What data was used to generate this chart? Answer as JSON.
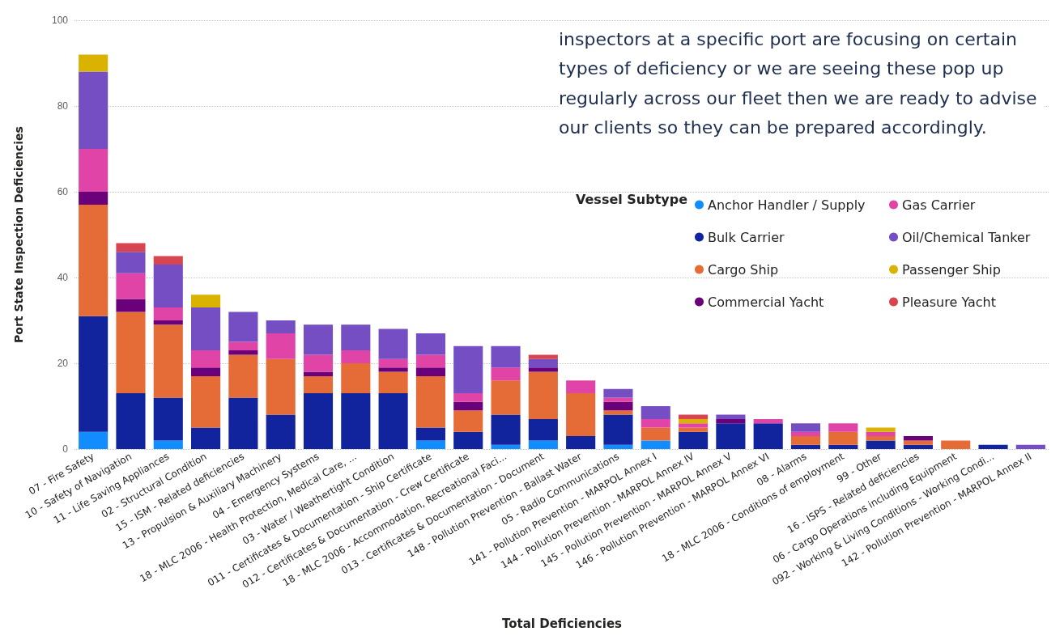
{
  "chart_data": {
    "type": "bar",
    "stacked": true,
    "xlabel": "Total Deficiencies",
    "ylabel": "Port State Inspection Deficiencies",
    "legend_title": "Vessel Subtype",
    "legend": "right",
    "grid": "y",
    "ylim": [
      0,
      100
    ],
    "yticks": [
      0,
      20,
      40,
      60,
      80,
      100
    ],
    "annotations": [
      "inspectors at a specific port are focusing on certain types of deficiency or we are seeing these pop up regularly across our fleet then we are ready to advise our clients so they can be prepared accordingly."
    ],
    "categories": [
      "07 - Fire Safety",
      "10 - Safety of Navigation",
      "11 - Life Saving Appliances",
      "02 - Structural Condition",
      "15 - ISM - Related deficiencies",
      "13 - Propulsion & Auxiliary Machinery",
      "04 - Emergency Systems",
      "18 - MLC 2006 - Health Protection, Medical Care, ...",
      "03 - Water / Weathertight Condition",
      "011 - Certificates & Documentation - Ship Certificate",
      "012 - Certificates & Documentation - Crew Certificate",
      "18 - MLC 2006 - Accommodation, Recreational Faci...",
      "013 - Certificates & Documentation - Document",
      "148 - Pollution Prevention - Ballast Water",
      "05 - Radio Communications",
      "141 - Pollution Prevention - MARPOL Annex I",
      "144 - Pollution Prevention - MARPOL Annex IV",
      "145 - Pollution Prevention - MARPOL Annex V",
      "146 - Pollution Prevention - MARPOL Annex VI",
      "08 - Alarms",
      "18 - MLC 2006 - Conditions of employment",
      "99 - Other",
      "16 - ISPS - Related deficiencies",
      "06 - Cargo Operations including Equipment",
      "092 - Working & Living Conditions - Working Condi...",
      "142 - Pollution Prevention - MARPOL Annex II"
    ],
    "series": [
      {
        "name": "Anchor Handler / Supply",
        "color": "#118dff",
        "values": [
          4,
          0,
          2,
          0,
          0,
          0,
          0,
          0,
          0,
          2,
          0,
          1,
          2,
          0,
          1,
          2,
          0,
          0,
          0,
          0,
          0,
          0,
          0,
          0,
          0,
          0
        ]
      },
      {
        "name": "Bulk Carrier",
        "color": "#12239e",
        "values": [
          27,
          13,
          10,
          5,
          12,
          8,
          13,
          13,
          13,
          3,
          4,
          7,
          5,
          3,
          7,
          0,
          4,
          6,
          6,
          1,
          1,
          2,
          1,
          0,
          1,
          0
        ]
      },
      {
        "name": "Cargo Ship",
        "color": "#e66c37",
        "values": [
          26,
          19,
          17,
          12,
          10,
          13,
          4,
          7,
          5,
          12,
          5,
          8,
          11,
          10,
          1,
          3,
          1,
          0,
          0,
          2,
          3,
          1,
          1,
          2,
          0,
          0
        ]
      },
      {
        "name": "Commercial Yacht",
        "color": "#6b007b",
        "values": [
          3,
          3,
          1,
          2,
          1,
          0,
          1,
          0,
          1,
          2,
          2,
          0,
          1,
          0,
          2,
          0,
          0,
          1,
          0,
          0,
          0,
          0,
          1,
          0,
          0,
          0
        ]
      },
      {
        "name": "Gas Carrier",
        "color": "#e044a7",
        "values": [
          10,
          6,
          3,
          4,
          2,
          6,
          4,
          3,
          2,
          3,
          2,
          3,
          0,
          3,
          1,
          2,
          1,
          0,
          1,
          1,
          2,
          1,
          0,
          0,
          0,
          0
        ]
      },
      {
        "name": "Oil/Chemical Tanker",
        "color": "#744ec2",
        "values": [
          18,
          5,
          10,
          10,
          7,
          3,
          7,
          6,
          7,
          5,
          11,
          5,
          2,
          0,
          2,
          3,
          0,
          1,
          0,
          2,
          0,
          0,
          0,
          0,
          0,
          1
        ]
      },
      {
        "name": "Passenger Ship",
        "color": "#d9b300",
        "values": [
          4,
          0,
          0,
          3,
          0,
          0,
          0,
          0,
          0,
          0,
          0,
          0,
          0,
          0,
          0,
          0,
          1,
          0,
          0,
          0,
          0,
          1,
          0,
          0,
          0,
          0
        ]
      },
      {
        "name": "Pleasure Yacht",
        "color": "#d64550",
        "values": [
          0,
          2,
          2,
          0,
          0,
          0,
          0,
          0,
          0,
          0,
          0,
          0,
          1,
          0,
          0,
          0,
          1,
          0,
          0,
          0,
          0,
          0,
          0,
          0,
          0,
          0
        ]
      }
    ]
  }
}
